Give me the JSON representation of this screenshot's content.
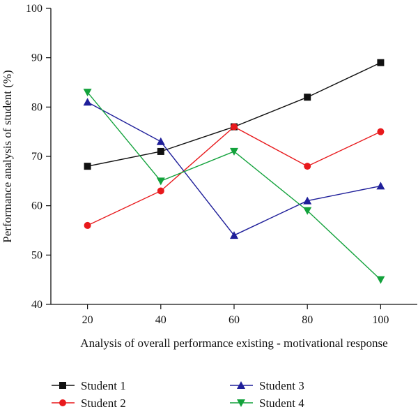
{
  "chart_data": {
    "type": "line",
    "title": "",
    "xlabel": "Analysis of overall performance existing - motivational response",
    "ylabel": "Performance analysis of student (%)",
    "x": [
      20,
      40,
      60,
      80,
      100
    ],
    "xlim": [
      10,
      110
    ],
    "ylim": [
      40,
      100
    ],
    "xticks": [
      20,
      40,
      60,
      80,
      100
    ],
    "yticks": [
      40,
      50,
      60,
      70,
      80,
      90,
      100
    ],
    "grid": false,
    "legend_position": "bottom",
    "series": [
      {
        "name": "Student 1",
        "values": [
          68,
          71,
          76,
          82,
          89
        ],
        "color": "#111111",
        "marker": "square"
      },
      {
        "name": "Student 2",
        "values": [
          56,
          63,
          76,
          68,
          75
        ],
        "color": "#e8191c",
        "marker": "circle"
      },
      {
        "name": "Student 3",
        "values": [
          81,
          73,
          54,
          61,
          64
        ],
        "color": "#1f1f9a",
        "marker": "triangle-up"
      },
      {
        "name": "Student 4",
        "values": [
          83,
          65,
          71,
          59,
          45
        ],
        "color": "#13a23c",
        "marker": "triangle-down"
      }
    ]
  }
}
